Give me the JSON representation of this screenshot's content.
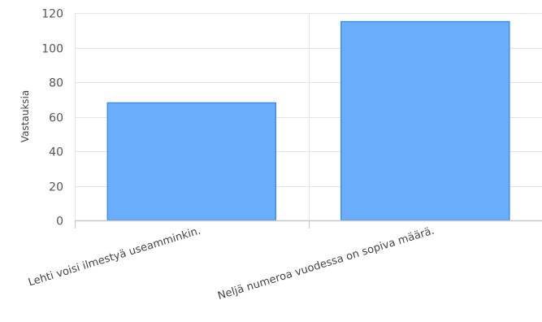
{
  "chart_data": {
    "type": "bar",
    "title": "",
    "xlabel": "",
    "ylabel": "Vastauksia",
    "categories": [
      "Lehti voisi ilmestyä useamminkin.",
      "Neljä numeroa vuodessa on sopiva määrä."
    ],
    "series": [
      {
        "values": [
          68,
          115
        ]
      }
    ],
    "ylim": [
      0,
      120
    ],
    "yticks": [
      0,
      20,
      40,
      60,
      80,
      100,
      120
    ],
    "grid": true,
    "legend": "none",
    "colors": {
      "bar_fill": "#6aaefb",
      "bar_stroke": "#3d8ff0",
      "grid": "#e4e4e4",
      "axis": "#c8c8c8"
    }
  }
}
